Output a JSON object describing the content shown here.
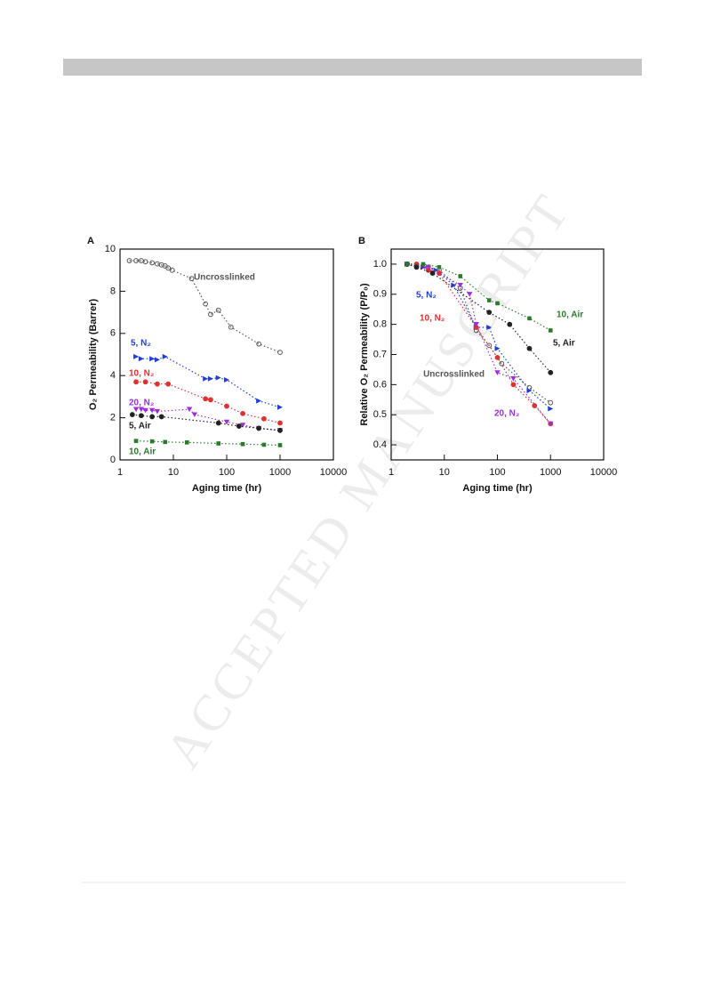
{
  "watermark": "ACCEPTED MANUSCRIPT",
  "chart_data": [
    {
      "type": "scatter",
      "title": "A",
      "xlabel": "Aging time (hr)",
      "ylabel": "O₂ Permeability (Barrer)",
      "xscale": "log",
      "xlim": [
        1,
        10000
      ],
      "xticks": [
        1,
        10,
        100,
        1000,
        10000
      ],
      "ylim": [
        0,
        10
      ],
      "yticks": [
        0,
        2,
        4,
        6,
        8,
        10
      ],
      "series": [
        {
          "name": "Uncrosslinked",
          "color": "#555555",
          "marker": "circle-open",
          "x": [
            1.5,
            2,
            2.5,
            3,
            4,
            5,
            6,
            7,
            8,
            9.5,
            22,
            40,
            50,
            70,
            120,
            400,
            1000
          ],
          "values": [
            9.45,
            9.45,
            9.45,
            9.4,
            9.35,
            9.3,
            9.25,
            9.2,
            9.1,
            9.0,
            8.6,
            7.4,
            6.9,
            7.1,
            6.3,
            5.5,
            5.1
          ]
        },
        {
          "name": "5, N₂",
          "color": "#1f3fd4",
          "marker": "triangle-right",
          "x": [
            2,
            2.5,
            4,
            5,
            7,
            40,
            50,
            70,
            100,
            400,
            1000
          ],
          "values": [
            4.9,
            4.8,
            4.8,
            4.75,
            4.9,
            3.85,
            3.85,
            3.9,
            3.8,
            2.8,
            2.5
          ]
        },
        {
          "name": "10, N₂",
          "color": "#e03030",
          "marker": "circle",
          "x": [
            2,
            3,
            5,
            8,
            40,
            50,
            100,
            200,
            500,
            1000
          ],
          "values": [
            3.7,
            3.7,
            3.6,
            3.6,
            2.9,
            2.85,
            2.55,
            2.2,
            1.95,
            1.75
          ]
        },
        {
          "name": "20, N₂",
          "color": "#9b30d8",
          "marker": "triangle-down",
          "x": [
            2,
            2.5,
            3,
            4,
            5,
            20,
            25,
            100,
            200,
            400,
            1000
          ],
          "values": [
            2.4,
            2.4,
            2.35,
            2.35,
            2.3,
            2.4,
            2.15,
            1.8,
            1.65,
            1.5,
            1.4
          ]
        },
        {
          "name": "5, Air",
          "color": "#222222",
          "marker": "circle",
          "x": [
            1.7,
            2.5,
            4,
            6,
            70,
            170,
            400,
            1000
          ],
          "values": [
            2.15,
            2.1,
            2.05,
            2.05,
            1.75,
            1.6,
            1.5,
            1.4
          ]
        },
        {
          "name": "10, Air",
          "color": "#2a7a2a",
          "marker": "square",
          "x": [
            2,
            4,
            7,
            18,
            70,
            200,
            500,
            1000
          ],
          "values": [
            0.9,
            0.88,
            0.85,
            0.83,
            0.78,
            0.75,
            0.72,
            0.7
          ]
        }
      ]
    },
    {
      "type": "scatter",
      "title": "B",
      "xlabel": "Aging time (hr)",
      "ylabel": "Relative O₂ Permeability (P/P₀)",
      "xscale": "log",
      "xlim": [
        1,
        10000
      ],
      "xticks": [
        1,
        10,
        100,
        1000,
        10000
      ],
      "ylim": [
        0.35,
        1.05
      ],
      "yticks": [
        0.4,
        0.5,
        0.6,
        0.7,
        0.8,
        0.9,
        {
          "value": 1,
          "label": "1.0"
        }
      ],
      "series": [
        {
          "name": "Uncrosslinked",
          "color": "#555555",
          "marker": "circle-open",
          "x": [
            2,
            3,
            5,
            8,
            20,
            40,
            70,
            120,
            400,
            1000
          ],
          "values": [
            1.0,
            0.995,
            0.99,
            0.98,
            0.92,
            0.78,
            0.73,
            0.67,
            0.59,
            0.54
          ]
        },
        {
          "name": "5, N₂",
          "color": "#1f3fd4",
          "marker": "triangle-right",
          "x": [
            2,
            4,
            7,
            15,
            40,
            70,
            100,
            400,
            1000
          ],
          "values": [
            1.0,
            0.99,
            0.98,
            0.93,
            0.79,
            0.79,
            0.72,
            0.58,
            0.52
          ]
        },
        {
          "name": "10, N₂",
          "color": "#e03030",
          "marker": "circle",
          "x": [
            2,
            3,
            5,
            8,
            40,
            100,
            200,
            500,
            1000
          ],
          "values": [
            1.0,
            1.0,
            0.98,
            0.97,
            0.79,
            0.69,
            0.6,
            0.53,
            0.47
          ]
        },
        {
          "name": "20, N₂",
          "color": "#9b30d8",
          "marker": "triangle-down",
          "x": [
            2,
            3,
            5,
            20,
            30,
            40,
            100,
            200,
            1000
          ],
          "values": [
            1.0,
            0.99,
            0.99,
            0.93,
            0.9,
            0.8,
            0.64,
            0.62,
            0.47
          ]
        },
        {
          "name": "5, Air",
          "color": "#222222",
          "marker": "circle",
          "x": [
            2,
            3,
            6,
            70,
            170,
            400,
            1000
          ],
          "values": [
            1.0,
            0.99,
            0.97,
            0.84,
            0.8,
            0.72,
            0.64
          ]
        },
        {
          "name": "10, Air",
          "color": "#2a7a2a",
          "marker": "square",
          "x": [
            2,
            4,
            8,
            20,
            70,
            100,
            400,
            1000
          ],
          "values": [
            1.0,
            1.0,
            0.99,
            0.96,
            0.88,
            0.87,
            0.82,
            0.78
          ]
        }
      ]
    }
  ]
}
